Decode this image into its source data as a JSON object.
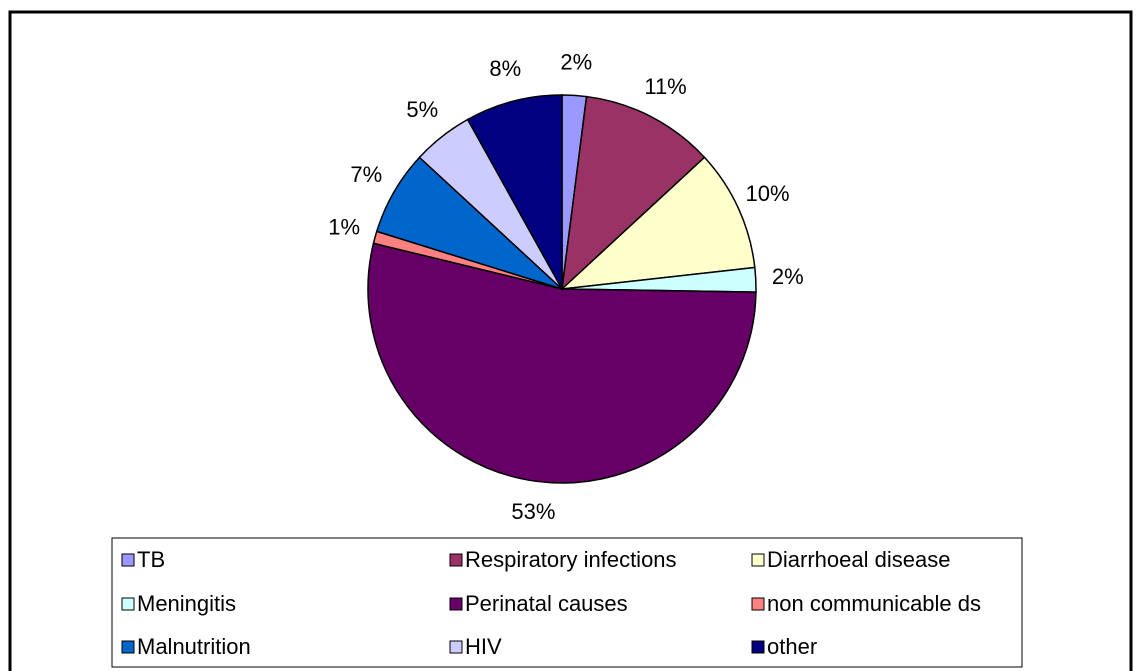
{
  "chart_data": {
    "type": "pie",
    "categories": [
      "TB",
      "Respiratory infections",
      "Diarrhoeal disease",
      "Meningitis",
      "Perinatal causes",
      "non communicable ds",
      "Malnutrition",
      "HIV",
      "other"
    ],
    "values": [
      2,
      11,
      10,
      2,
      53,
      1,
      7,
      5,
      8
    ],
    "value_labels": [
      "2%",
      "11%",
      "10%",
      "2%",
      "53%",
      "1%",
      "7%",
      "5%",
      "8%"
    ],
    "colors": [
      "#9999ff",
      "#993366",
      "#ffffcc",
      "#ccffff",
      "#660066",
      "#ff8080",
      "#0066cc",
      "#ccccff",
      "#000080"
    ],
    "legend": "bottom"
  }
}
